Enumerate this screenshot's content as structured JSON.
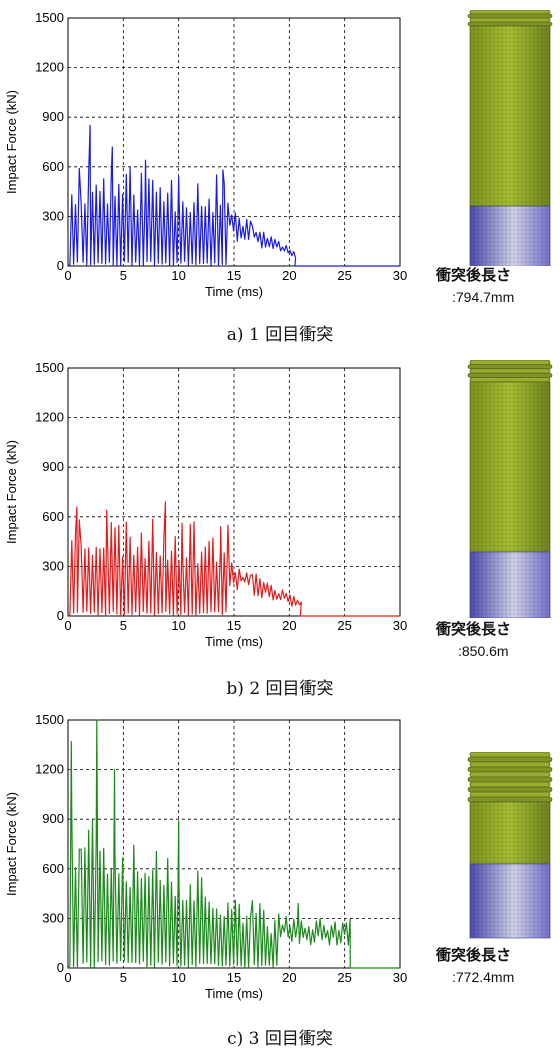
{
  "chart_data": [
    {
      "type": "line",
      "series": [
        {
          "color": "#1a1ae6",
          "end_time": 20.5
        }
      ],
      "seed": 11,
      "spike_points": [
        [
          2,
          850
        ],
        [
          4,
          720
        ],
        [
          7,
          640
        ],
        [
          10,
          540
        ],
        [
          14,
          580
        ]
      ],
      "xlabel": "Time (ms)",
      "ylabel": "Impact Force (kN)",
      "xlim": [
        0,
        30
      ],
      "ylim": [
        0,
        1500
      ],
      "xticks": [
        "0",
        "5",
        "10",
        "15",
        "20",
        "25",
        "30"
      ],
      "yticks": [
        "0",
        "300",
        "600",
        "900",
        "1200",
        "1500"
      ],
      "grid": true
    },
    {
      "type": "line",
      "series": [
        {
          "color": "#e61a1a",
          "end_time": 21
        }
      ],
      "seed": 23,
      "spike_points": [
        [
          0.8,
          660
        ],
        [
          3.5,
          640
        ],
        [
          8.8,
          690
        ],
        [
          10.3,
          560
        ],
        [
          13.8,
          540
        ]
      ],
      "xlabel": "Time (ms)",
      "ylabel": "Impact Force (kN)",
      "xlim": [
        0,
        30
      ],
      "ylim": [
        0,
        1500
      ],
      "xticks": [
        "0",
        "5",
        "10",
        "15",
        "20",
        "25",
        "30"
      ],
      "yticks": [
        "0",
        "300",
        "600",
        "900",
        "1200",
        "1500"
      ],
      "grid": true
    },
    {
      "type": "line",
      "series": [
        {
          "color": "#1a8a1a",
          "end_time": 25.5
        }
      ],
      "seed": 37,
      "spike_points": [
        [
          0.3,
          1370
        ],
        [
          2.6,
          1500
        ],
        [
          4.2,
          1200
        ],
        [
          10,
          890
        ],
        [
          20.8,
          390
        ]
      ],
      "xlabel": "Time (ms)",
      "ylabel": "Impact Force (kN)",
      "xlim": [
        0,
        30
      ],
      "ylim": [
        0,
        1500
      ],
      "xticks": [
        "0",
        "5",
        "10",
        "15",
        "20",
        "25",
        "30"
      ],
      "yticks": [
        "0",
        "300",
        "600",
        "900",
        "1200",
        "1500"
      ],
      "grid": true
    }
  ],
  "panels": [
    {
      "caption": "a) 1 回目衝突",
      "length_label": "衝突後長さ",
      "length_value": ":794.7mm"
    },
    {
      "caption": "b) 2 回目衝突",
      "length_label": "衝突後長さ",
      "length_value": ":850.6m"
    },
    {
      "caption": "c) 3 回目衝突",
      "length_label": "衝突後長さ",
      "length_value": ":772.4mm"
    }
  ],
  "colors": {
    "upper_part": "#a9c133",
    "lower_part": "#6f6fd2",
    "wrinkle": "#5c6a1e"
  }
}
